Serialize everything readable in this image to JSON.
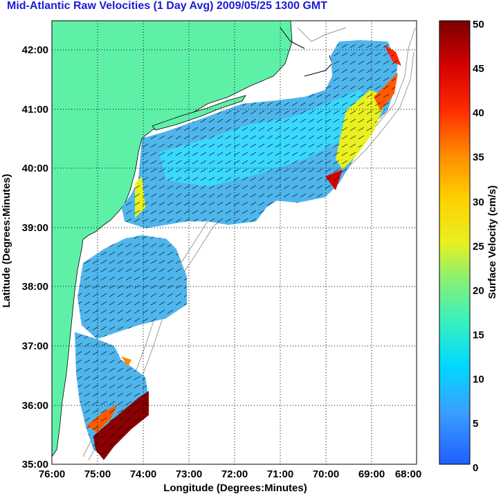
{
  "title": "Mid-Atlantic Raw Velocities (1 Day Avg) 2009/05/25 1300 GMT",
  "x_axis": {
    "label": "Longitude (Degrees:Minutes)",
    "ticks": [
      "76:00",
      "75:00",
      "74:00",
      "73:00",
      "72:00",
      "71:00",
      "70:00",
      "69:00",
      "68:00"
    ]
  },
  "y_axis": {
    "label": "Latitude (Degrees:Minutes)",
    "ticks": [
      "35:00",
      "36:00",
      "37:00",
      "38:00",
      "39:00",
      "40:00",
      "41:00",
      "42:00"
    ]
  },
  "colorbar": {
    "label": "Surface Velocity (cm/s)",
    "ticks": [
      "0",
      "5",
      "10",
      "15",
      "20",
      "25",
      "30",
      "35",
      "40",
      "45",
      "50"
    ],
    "min": 0,
    "max": 50
  },
  "colors": {
    "land": "#5ff0a8",
    "coast_line": "#000000",
    "bathymetry": "#9a9a9a",
    "grid": "#000000",
    "title": "#1b1bd6"
  }
}
